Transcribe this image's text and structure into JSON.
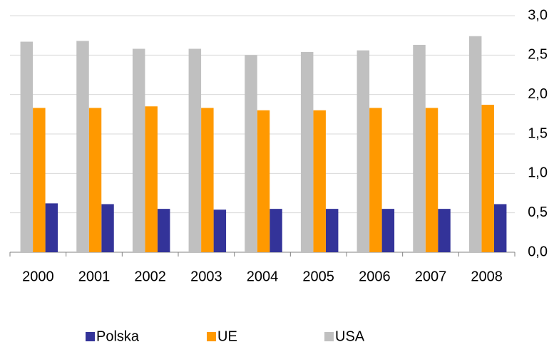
{
  "chart_data": {
    "type": "bar",
    "categories": [
      "2000",
      "2001",
      "2002",
      "2003",
      "2004",
      "2005",
      "2006",
      "2007",
      "2008"
    ],
    "series": [
      {
        "name": "Polska",
        "color": "#333399",
        "values": [
          0.62,
          0.61,
          0.55,
          0.54,
          0.55,
          0.55,
          0.55,
          0.55,
          0.61
        ]
      },
      {
        "name": "UE",
        "color": "#ff9900",
        "values": [
          1.83,
          1.83,
          1.85,
          1.83,
          1.8,
          1.8,
          1.83,
          1.83,
          1.87
        ]
      },
      {
        "name": "USA",
        "color": "#c0c0c0",
        "values": [
          2.67,
          2.68,
          2.58,
          2.58,
          2.5,
          2.54,
          2.56,
          2.63,
          2.74
        ]
      }
    ],
    "ylim": [
      0,
      3
    ],
    "yticks": [
      {
        "value": 0,
        "label": "0,0"
      },
      {
        "value": 0.5,
        "label": "0,5"
      },
      {
        "value": 1,
        "label": "1,0"
      },
      {
        "value": 1.5,
        "label": "1,5"
      },
      {
        "value": 2,
        "label": "2,0"
      },
      {
        "value": 2.5,
        "label": "2,5"
      },
      {
        "value": 3,
        "label": "3,0"
      }
    ],
    "grid": true,
    "legend": "bottom"
  }
}
